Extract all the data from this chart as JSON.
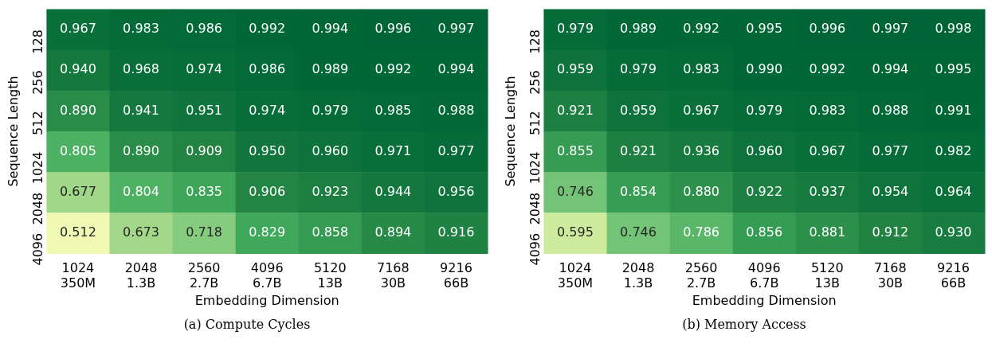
{
  "chart_data": [
    {
      "type": "heatmap",
      "title": "(a) Compute Cycles",
      "xlabel": "Embedding Dimension",
      "ylabel": "Sequence Length",
      "data_labels": true,
      "categories": [
        "1024\n350M",
        "2048\n1.3B",
        "2560\n2.7B",
        "4096\n6.7B",
        "5120\n13B",
        "7168\n30B",
        "9216\n66B"
      ],
      "y_categories": [
        "128",
        "256",
        "512",
        "1024",
        "2048",
        "4096"
      ],
      "cells": [
        [
          0.967,
          0.983,
          0.986,
          0.992,
          0.994,
          0.996,
          0.997
        ],
        [
          0.94,
          0.968,
          0.974,
          0.986,
          0.989,
          0.992,
          0.994
        ],
        [
          0.89,
          0.941,
          0.951,
          0.974,
          0.979,
          0.985,
          0.988
        ],
        [
          0.805,
          0.89,
          0.909,
          0.95,
          0.96,
          0.971,
          0.977
        ],
        [
          0.677,
          0.804,
          0.835,
          0.906,
          0.923,
          0.944,
          0.956
        ],
        [
          0.512,
          0.673,
          0.718,
          0.829,
          0.858,
          0.894,
          0.916
        ]
      ],
      "cell_labels": [
        [
          "0.967",
          "0.983",
          "0.986",
          "0.992",
          "0.994",
          "0.996",
          "0.997"
        ],
        [
          "0.940",
          "0.968",
          "0.974",
          "0.986",
          "0.989",
          "0.992",
          "0.994"
        ],
        [
          "0.890",
          "0.941",
          "0.951",
          "0.974",
          "0.979",
          "0.985",
          "0.988"
        ],
        [
          "0.805",
          "0.890",
          "0.909",
          "0.950",
          "0.960",
          "0.971",
          "0.977"
        ],
        [
          "0.677",
          "0.804",
          "0.835",
          "0.906",
          "0.923",
          "0.944",
          "0.956"
        ],
        [
          "0.512",
          "0.673",
          "0.718",
          "0.829",
          "0.858",
          "0.894",
          "0.916"
        ]
      ]
    },
    {
      "type": "heatmap",
      "title": "(b) Memory Access",
      "xlabel": "Embedding Dimension",
      "ylabel": "Sequence Length",
      "data_labels": true,
      "categories": [
        "1024\n350M",
        "2048\n1.3B",
        "2560\n2.7B",
        "4096\n6.7B",
        "5120\n13B",
        "7168\n30B",
        "9216\n66B"
      ],
      "y_categories": [
        "128",
        "256",
        "512",
        "1024",
        "2048",
        "4096"
      ],
      "cells": [
        [
          0.979,
          0.989,
          0.992,
          0.995,
          0.996,
          0.997,
          0.998
        ],
        [
          0.959,
          0.979,
          0.983,
          0.99,
          0.992,
          0.994,
          0.995
        ],
        [
          0.921,
          0.959,
          0.967,
          0.979,
          0.983,
          0.988,
          0.991
        ],
        [
          0.855,
          0.921,
          0.936,
          0.96,
          0.967,
          0.977,
          0.982
        ],
        [
          0.746,
          0.854,
          0.88,
          0.922,
          0.937,
          0.954,
          0.964
        ],
        [
          0.595,
          0.746,
          0.786,
          0.856,
          0.881,
          0.912,
          0.93
        ]
      ],
      "cell_labels": [
        [
          "0.979",
          "0.989",
          "0.992",
          "0.995",
          "0.996",
          "0.997",
          "0.998"
        ],
        [
          "0.959",
          "0.979",
          "0.983",
          "0.990",
          "0.992",
          "0.994",
          "0.995"
        ],
        [
          "0.921",
          "0.959",
          "0.967",
          "0.979",
          "0.983",
          "0.988",
          "0.991"
        ],
        [
          "0.855",
          "0.921",
          "0.936",
          "0.960",
          "0.967",
          "0.977",
          "0.982"
        ],
        [
          "0.746",
          "0.854",
          "0.880",
          "0.922",
          "0.937",
          "0.954",
          "0.964"
        ],
        [
          "0.595",
          "0.746",
          "0.786",
          "0.856",
          "0.881",
          "0.912",
          "0.930"
        ]
      ]
    }
  ]
}
